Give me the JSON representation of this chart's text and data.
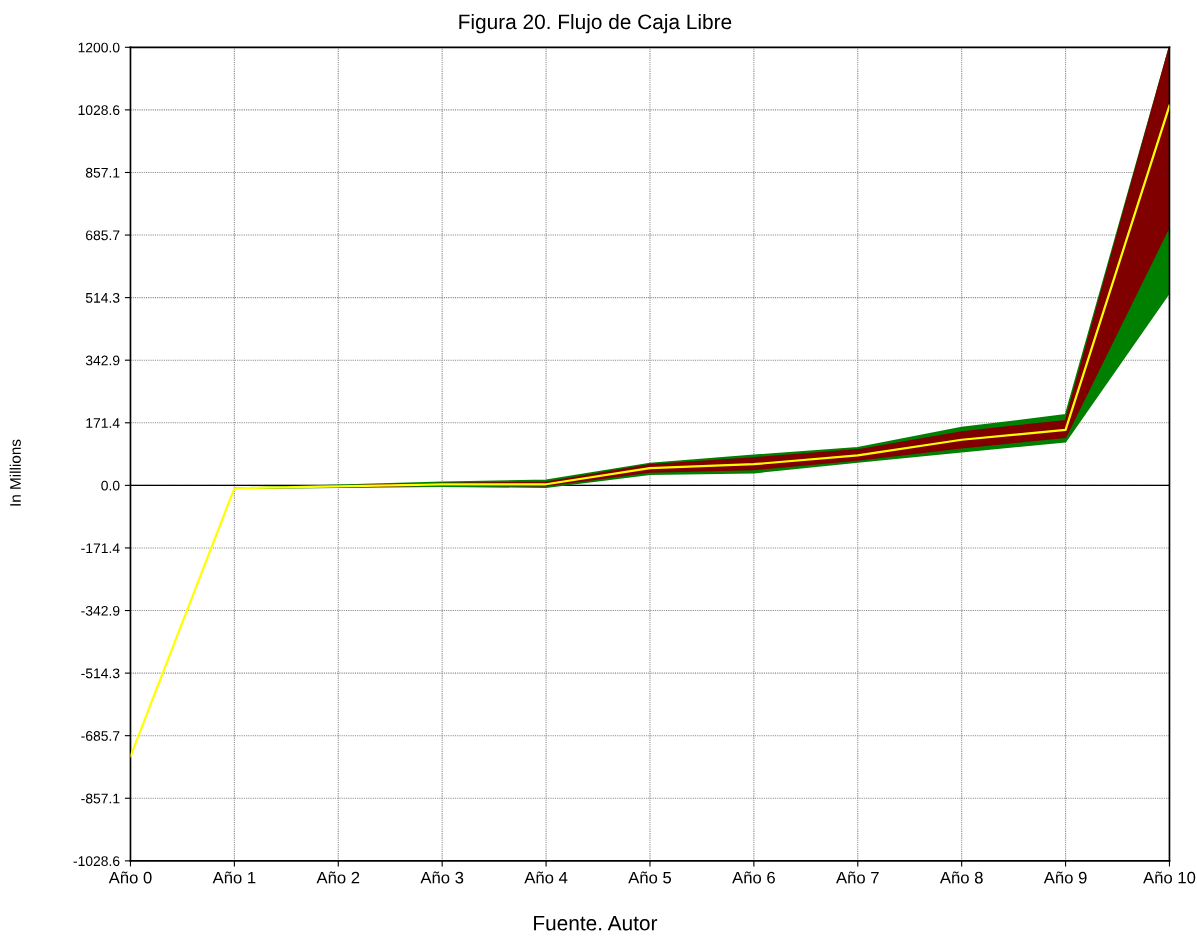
{
  "chart_data": {
    "type": "line",
    "title": "Figura 20. Flujo de Caja Libre",
    "ylabel": "In Millions",
    "annotations": [
      "Fuente. Autor"
    ],
    "categories": [
      "Año 0",
      "Año 1",
      "Año 2",
      "Año 3",
      "Año 4",
      "Año 5",
      "Año 6",
      "Año 7",
      "Año 8",
      "Año 9",
      "Año 10"
    ],
    "series": [
      {
        "color": "#008000",
        "values": [
          null,
          null,
          null,
          null,
          null,
          null,
          null,
          null,
          null,
          null,
          null
        ],
        "lower": [
          null,
          -8,
          -5,
          -2,
          -5,
          31,
          35,
          64,
          92,
          120,
          528
        ],
        "upper": [
          null,
          -8,
          0,
          8,
          14,
          60,
          82,
          103,
          158,
          193,
          1200
        ]
      },
      {
        "color": "#800000",
        "values": [
          null,
          null,
          null,
          null,
          null,
          null,
          null,
          null,
          null,
          null,
          null
        ],
        "lower": [
          null,
          null,
          -4,
          1,
          -1,
          37,
          44,
          70,
          103,
          132,
          710
        ],
        "upper": [
          null,
          null,
          -2,
          5,
          8,
          56,
          75,
          97,
          146,
          177,
          1200
        ]
      },
      {
        "color": "#ffff00",
        "values": [
          -742,
          -8,
          -3,
          3,
          3,
          47,
          58,
          82,
          125,
          152,
          1040
        ]
      }
    ],
    "ylim": [
      -1028.6,
      1200
    ],
    "yticks": [
      {
        "value": -1028.6,
        "label": "-1028.6"
      },
      {
        "value": -857.1,
        "label": "-857.1"
      },
      {
        "value": -685.7,
        "label": "-685.7"
      },
      {
        "value": -514.3,
        "label": "-514.3"
      },
      {
        "value": -342.9,
        "label": "-342.9"
      },
      {
        "value": -171.4,
        "label": "-171.4"
      },
      {
        "value": 0,
        "label": "0.0"
      },
      {
        "value": 171.4,
        "label": "171.4"
      },
      {
        "value": 342.9,
        "label": "342.9"
      },
      {
        "value": 514.3,
        "label": "514.3"
      },
      {
        "value": 685.7,
        "label": "685.7"
      },
      {
        "value": 857.1,
        "label": "857.1"
      },
      {
        "value": 1028.6,
        "label": "1028.6"
      },
      {
        "value": 1200,
        "label": "1200.0"
      }
    ],
    "ref_lines": [
      {
        "axis": "y",
        "value": 0,
        "color": "#000000"
      }
    ],
    "grid": true,
    "legend": false
  }
}
